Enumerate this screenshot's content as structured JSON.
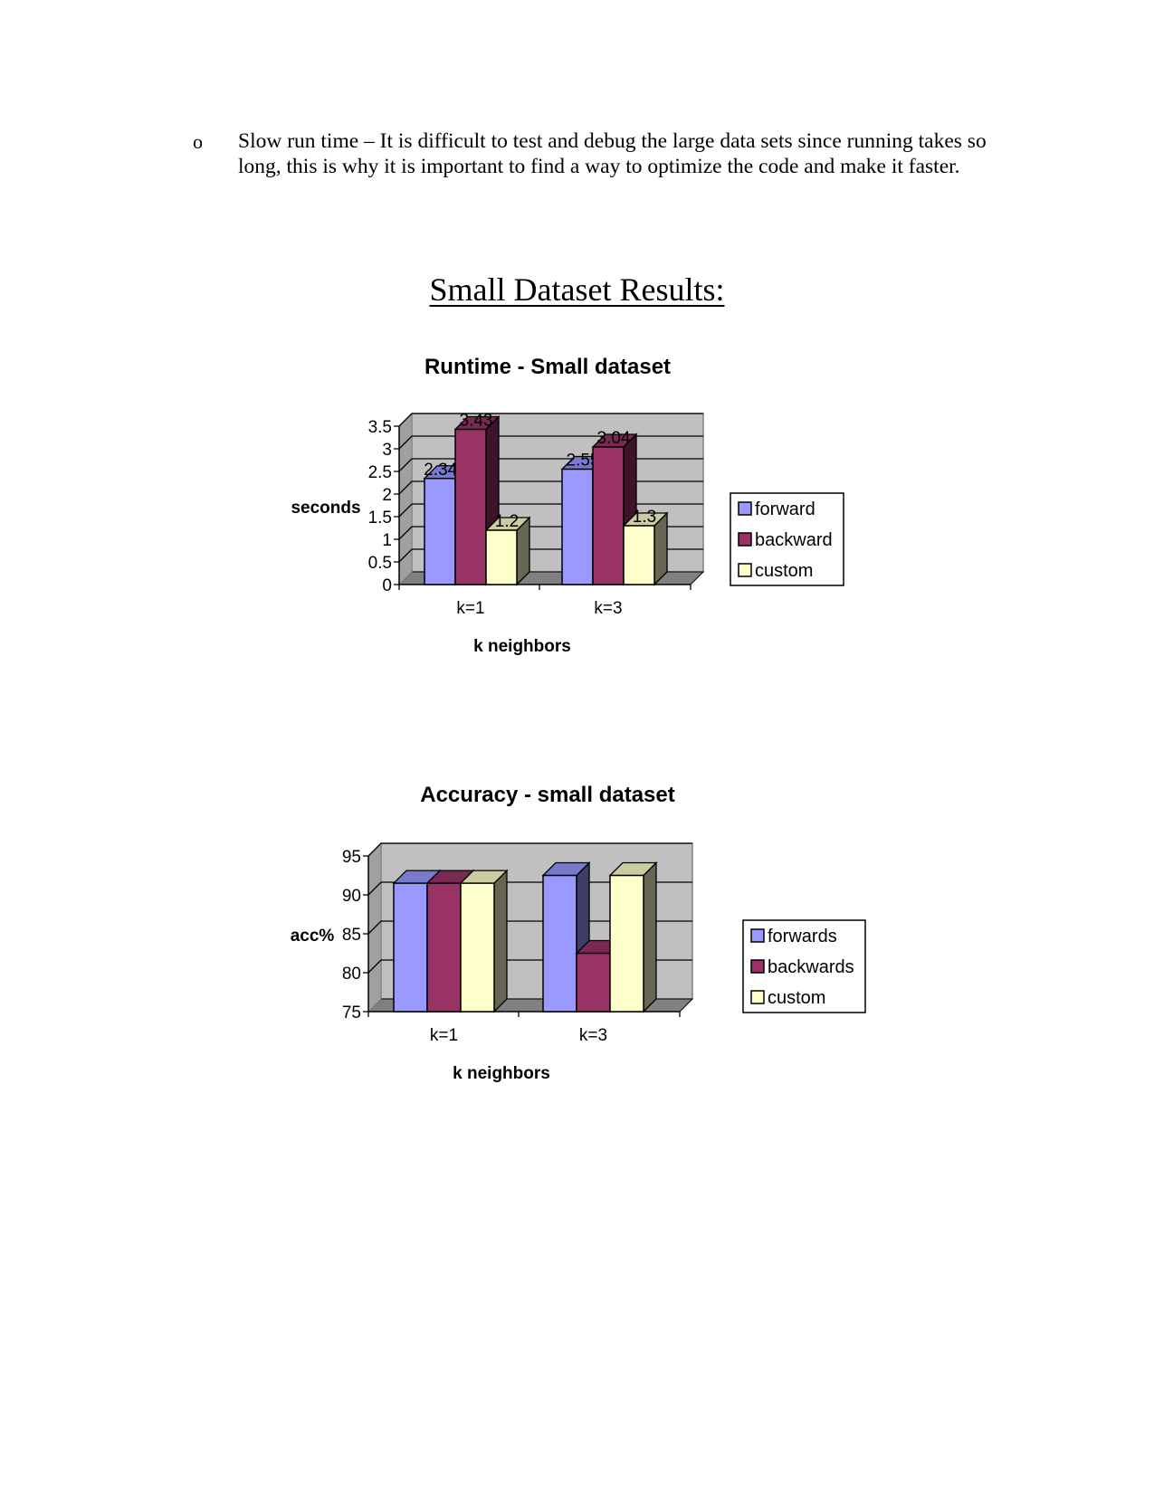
{
  "document": {
    "bullet_symbol": "o",
    "bullet_text": "Slow run time – It is difficult to test and debug the large data sets since running takes so long, this is why it is important to find a way to optimize the code and make it faster.",
    "section_heading": "Small Dataset Results:"
  },
  "colors": {
    "series": [
      "#9999ff",
      "#993366",
      "#ffffcc"
    ],
    "series_side": [
      "#3d3d66",
      "#3d1429",
      "#666652"
    ],
    "series_top": [
      "#7a7acc",
      "#7a2952",
      "#cccca3"
    ],
    "plot_wall": "#c0c0c0",
    "plot_floor": "#808080"
  },
  "chart_data": [
    {
      "type": "bar",
      "title": "Runtime - Small dataset",
      "ylabel": "seconds",
      "xlabel": "k neighbors",
      "categories": [
        "k=1",
        "k=3"
      ],
      "series": [
        {
          "name": "forward",
          "values": [
            2.345,
            2.55
          ]
        },
        {
          "name": "backward",
          "values": [
            3.43,
            3.04
          ]
        },
        {
          "name": "custom",
          "values": [
            1.2,
            1.3
          ]
        }
      ],
      "data_labels": [
        [
          "2.345",
          "2.55"
        ],
        [
          "3.43",
          "3.04"
        ],
        [
          "1.2",
          "1.3"
        ]
      ],
      "yticks": [
        "0",
        "0.5",
        "1",
        "1.5",
        "2",
        "2.5",
        "3",
        "3.5"
      ],
      "ylim": [
        0,
        3.5
      ],
      "grid": true,
      "legend": "right"
    },
    {
      "type": "bar",
      "title": "Accuracy - small dataset",
      "ylabel": "acc%",
      "xlabel": "k neighbors",
      "categories": [
        "k=1",
        "k=3"
      ],
      "series": [
        {
          "name": "forwards",
          "values": [
            91.5,
            92.5
          ]
        },
        {
          "name": "backwards",
          "values": [
            91.5,
            82.5
          ]
        },
        {
          "name": "custom",
          "values": [
            91.5,
            92.5
          ]
        }
      ],
      "yticks": [
        "75",
        "80",
        "85",
        "90",
        "95"
      ],
      "ylim": [
        75,
        95
      ],
      "grid": true,
      "legend": "right"
    }
  ]
}
